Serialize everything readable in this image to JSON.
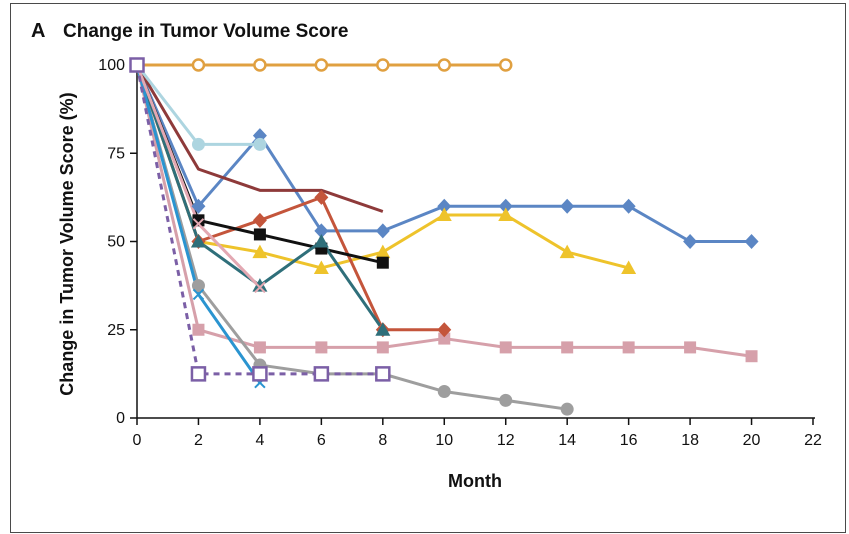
{
  "panel": {
    "letter": "A",
    "title": "Change in Tumor Volume Score"
  },
  "chart_data": {
    "type": "line",
    "title": "Change in Tumor Volume Score",
    "xlabel": "Month",
    "ylabel": "Change in Tumor Volume Score (%)",
    "xlim": [
      0,
      22
    ],
    "ylim": [
      0,
      100
    ],
    "xticks": [
      0,
      2,
      4,
      6,
      8,
      10,
      12,
      14,
      16,
      18,
      20,
      22
    ],
    "yticks": [
      0,
      25,
      50,
      75,
      100
    ],
    "grid": false,
    "legend": "none",
    "series": [
      {
        "color": "#E0A040",
        "marker": "circle-open",
        "dash": false,
        "points": [
          [
            0,
            100
          ],
          [
            2,
            100
          ],
          [
            4,
            100
          ],
          [
            6,
            100
          ],
          [
            8,
            100
          ],
          [
            10,
            100
          ],
          [
            12,
            100
          ]
        ]
      },
      {
        "color": "#5B86C4",
        "marker": "diamond",
        "dash": false,
        "points": [
          [
            0,
            100
          ],
          [
            2,
            60
          ],
          [
            4,
            80
          ],
          [
            6,
            53
          ],
          [
            8,
            53
          ],
          [
            10,
            60
          ],
          [
            12,
            60
          ],
          [
            14,
            60
          ],
          [
            16,
            60
          ],
          [
            18,
            50
          ],
          [
            20,
            50
          ]
        ]
      },
      {
        "color": "#EEC32B",
        "marker": "triangle",
        "dash": false,
        "points": [
          [
            0,
            100
          ],
          [
            2,
            50
          ],
          [
            4,
            47
          ],
          [
            6,
            42.5
          ],
          [
            8,
            47
          ],
          [
            10,
            57.5
          ],
          [
            12,
            57.5
          ],
          [
            14,
            47
          ],
          [
            16,
            42.5
          ]
        ]
      },
      {
        "color": "#D6A0AA",
        "marker": "square",
        "dash": false,
        "points": [
          [
            0,
            100
          ],
          [
            2,
            25
          ],
          [
            4,
            20
          ],
          [
            6,
            20
          ],
          [
            8,
            20
          ],
          [
            10,
            22.5
          ],
          [
            12,
            20
          ],
          [
            14,
            20
          ],
          [
            16,
            20
          ],
          [
            18,
            20
          ],
          [
            20,
            17.5
          ]
        ]
      },
      {
        "color": "#9E9E9E",
        "marker": "circle",
        "dash": false,
        "points": [
          [
            0,
            100
          ],
          [
            2,
            37.5
          ],
          [
            4,
            15
          ],
          [
            6,
            12.5
          ],
          [
            8,
            12.5
          ],
          [
            10,
            7.5
          ],
          [
            12,
            5
          ],
          [
            14,
            2.5
          ]
        ]
      },
      {
        "color": "#8E3A3A",
        "marker": "none",
        "dash": false,
        "points": [
          [
            0,
            100
          ],
          [
            2,
            70.5
          ],
          [
            4,
            64.5
          ],
          [
            6,
            64.5
          ],
          [
            8,
            58.5
          ]
        ]
      },
      {
        "color": "#C4553B",
        "marker": "diamond",
        "dash": false,
        "points": [
          [
            0,
            100
          ],
          [
            2,
            50
          ],
          [
            4,
            56
          ],
          [
            6,
            62.5
          ],
          [
            8,
            25
          ],
          [
            10,
            25
          ]
        ]
      },
      {
        "color": "#111111",
        "marker": "square",
        "dash": false,
        "points": [
          [
            0,
            100
          ],
          [
            2,
            56
          ],
          [
            4,
            52
          ],
          [
            6,
            48
          ],
          [
            8,
            44
          ]
        ]
      },
      {
        "color": "#2F6F7A",
        "marker": "triangle",
        "dash": false,
        "points": [
          [
            0,
            100
          ],
          [
            2,
            50
          ],
          [
            4,
            37.5
          ],
          [
            6,
            50
          ],
          [
            8,
            25
          ]
        ]
      },
      {
        "color": "#ADD5E0",
        "marker": "circle",
        "dash": false,
        "points": [
          [
            0,
            100
          ],
          [
            2,
            77.5
          ],
          [
            4,
            77.5
          ]
        ]
      },
      {
        "color": "#2A94D0",
        "marker": "x",
        "dash": false,
        "points": [
          [
            0,
            100
          ],
          [
            2,
            35
          ],
          [
            4,
            10
          ]
        ]
      },
      {
        "color": "#E3A8B2",
        "marker": "x",
        "dash": false,
        "points": [
          [
            0,
            100
          ],
          [
            2,
            55
          ],
          [
            4,
            37
          ]
        ]
      },
      {
        "color": "#7B5FA6",
        "marker": "square-open",
        "dash": true,
        "points": [
          [
            0,
            100
          ],
          [
            2,
            12.5
          ],
          [
            4,
            12.5
          ],
          [
            6,
            12.5
          ],
          [
            8,
            12.5
          ]
        ]
      }
    ]
  }
}
